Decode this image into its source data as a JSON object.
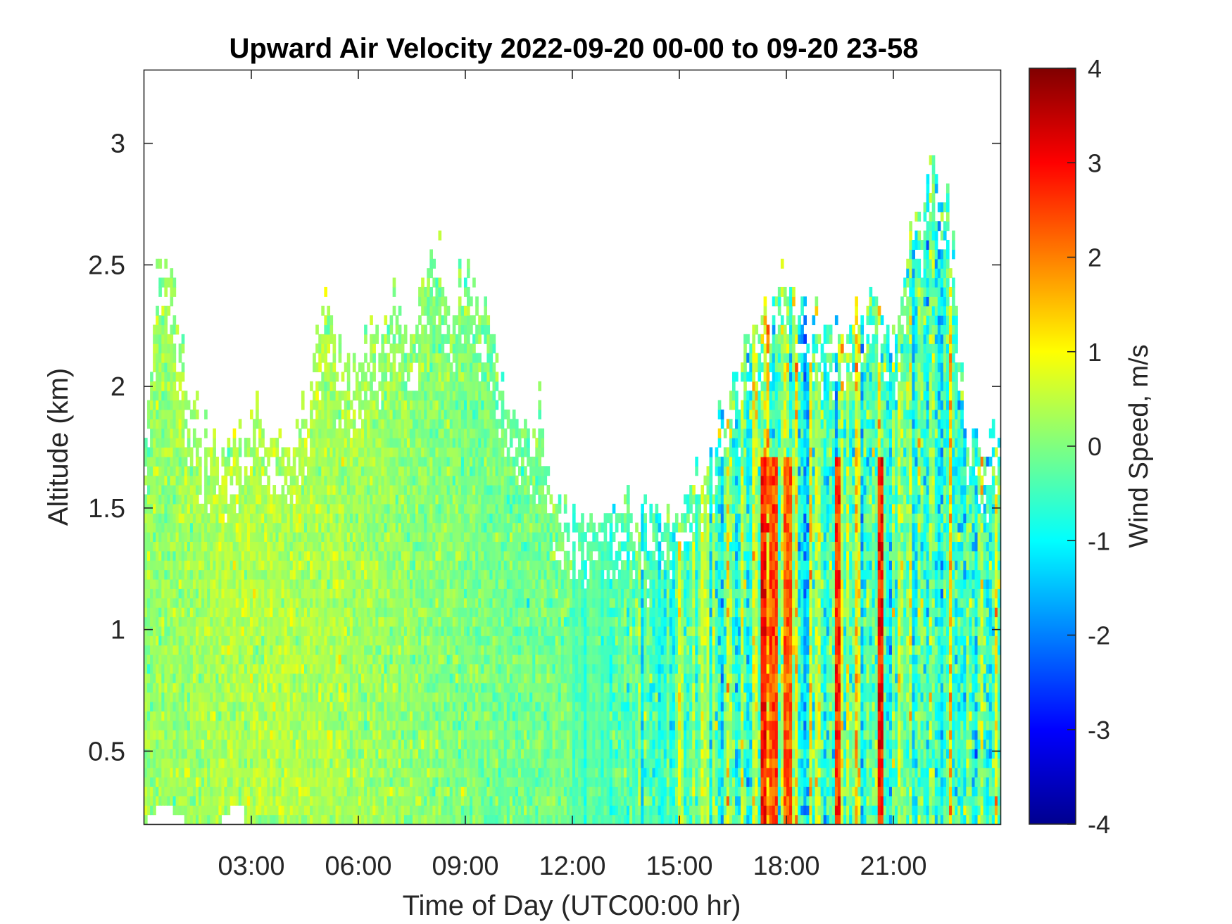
{
  "chart_data": {
    "type": "heatmap",
    "title": "Upward Air Velocity 2022-09-20 00-00 to 09-20 23-58",
    "xlabel": "Time of Day (UTC00:00 hr)",
    "ylabel": "Altitude (km)",
    "xlim": [
      0,
      24
    ],
    "ylim": [
      0.2,
      3.3
    ],
    "x_ticks": [
      3,
      6,
      9,
      12,
      15,
      18,
      21
    ],
    "x_tick_labels": [
      "03:00",
      "06:00",
      "09:00",
      "12:00",
      "15:00",
      "18:00",
      "21:00"
    ],
    "y_ticks": [
      0.5,
      1,
      1.5,
      2,
      2.5,
      3
    ],
    "y_tick_labels": [
      "0.5",
      "1",
      "1.5",
      "2",
      "2.5",
      "3"
    ],
    "colorbar": {
      "label": "Wind Speed, m/s",
      "range": [
        -4,
        4
      ],
      "ticks": [
        -4,
        -3,
        -2,
        -1,
        0,
        1,
        2,
        3,
        4
      ],
      "tick_labels": [
        "-4",
        "-3",
        "-2",
        "-1",
        "0",
        "1",
        "2",
        "3",
        "4"
      ],
      "colormap": "jet"
    },
    "signal_top_km": {
      "hours": [
        0,
        0.3,
        0.6,
        0.9,
        1.2,
        1.5,
        2.0,
        2.5,
        3.0,
        3.5,
        4.0,
        4.5,
        5.0,
        5.5,
        6.0,
        6.5,
        7.0,
        7.5,
        8.0,
        8.5,
        9.0,
        9.5,
        10.0,
        10.5,
        11.0,
        11.5,
        12.0,
        12.5,
        13.0,
        13.5,
        14.0,
        14.5,
        15.0,
        15.5,
        16.0,
        16.5,
        17.0,
        17.5,
        18.0,
        18.5,
        19.0,
        19.5,
        20.0,
        20.5,
        21.0,
        21.5,
        22.0,
        22.5,
        23.0,
        23.5,
        24.0
      ],
      "values": [
        1.8,
        2.4,
        2.6,
        2.3,
        1.9,
        1.8,
        1.7,
        1.75,
        1.9,
        1.8,
        1.7,
        1.8,
        2.4,
        2.1,
        2.1,
        2.2,
        2.3,
        2.2,
        2.6,
        2.3,
        2.5,
        2.3,
        2.0,
        1.8,
        1.9,
        1.5,
        1.45,
        1.4,
        1.45,
        1.45,
        1.5,
        1.45,
        1.5,
        1.6,
        1.8,
        2.0,
        2.2,
        2.3,
        2.4,
        2.3,
        2.3,
        2.2,
        2.3,
        2.4,
        2.2,
        2.6,
        2.9,
        2.7,
        1.8,
        1.75,
        1.8
      ]
    },
    "strong_updraft_streaks": [
      {
        "hour": 17.3,
        "peak_mps": 3.5
      },
      {
        "hour": 17.6,
        "peak_mps": 3.0
      },
      {
        "hour": 18.0,
        "peak_mps": 2.8
      },
      {
        "hour": 19.4,
        "peak_mps": 3.3
      },
      {
        "hour": 20.6,
        "peak_mps": 3.6
      }
    ]
  }
}
